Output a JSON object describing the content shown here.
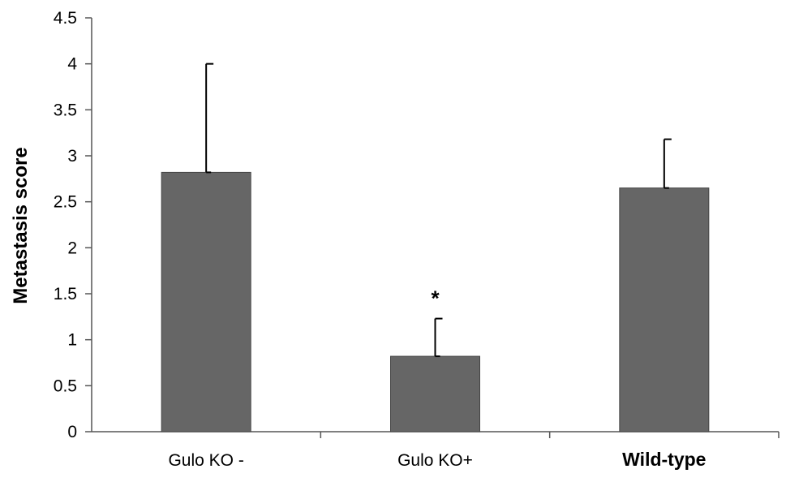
{
  "chart_data": {
    "type": "bar",
    "title": "",
    "xlabel": "",
    "ylabel": "Metastasis score",
    "ylim": [
      0,
      4.5
    ],
    "yticks": [
      "0",
      "0.5",
      "1",
      "1.5",
      "2",
      "2.5",
      "3",
      "3.5",
      "4",
      "4.5"
    ],
    "categories": [
      "Gulo KO -",
      "Gulo KO+",
      "Wild-type"
    ],
    "values": [
      2.82,
      0.82,
      2.65
    ],
    "error_upper": [
      1.18,
      0.41,
      0.53
    ],
    "annotations": [
      "",
      "*",
      ""
    ],
    "bar_color": "#666666",
    "grid": false,
    "legend": "none"
  }
}
